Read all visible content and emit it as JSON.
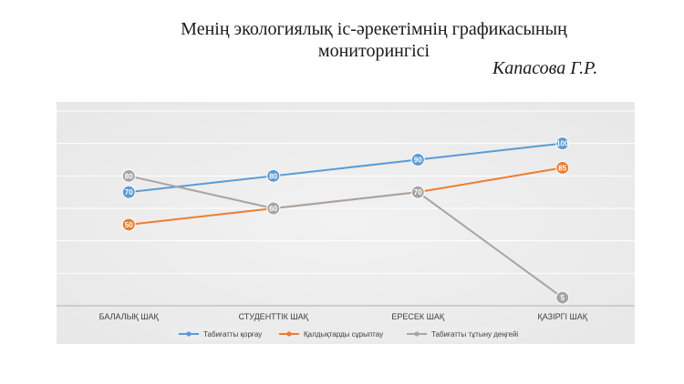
{
  "title_lines": [
    "Менің экологиялық іс-әрекетімнің графикасының",
    "мониторингісі"
  ],
  "author": "Капасова Г.Р.",
  "chart_data": {
    "type": "line",
    "categories": [
      "БАЛАЛЫҚ ШАҚ",
      "СТУДЕНТТІК ШАҚ",
      "ЕРЕСЕК ШАҚ",
      "ҚАЗІРГІ ШАҚ"
    ],
    "series": [
      {
        "name": "Табиғатты қорғау",
        "values": [
          70,
          80,
          90,
          100
        ],
        "color": "#5b9bd5"
      },
      {
        "name": "Қалдықтарды сұрыптау",
        "values": [
          50,
          60,
          70,
          85
        ],
        "color": "#ed7d31"
      },
      {
        "name": "Табиғатты тұтыну деңгейі",
        "values": [
          80,
          60,
          70,
          5
        ],
        "color": "#a5a5a5"
      }
    ],
    "ylim": [
      0,
      120
    ],
    "grid": true,
    "legend": "bottom",
    "background": "#e8e8e8"
  }
}
